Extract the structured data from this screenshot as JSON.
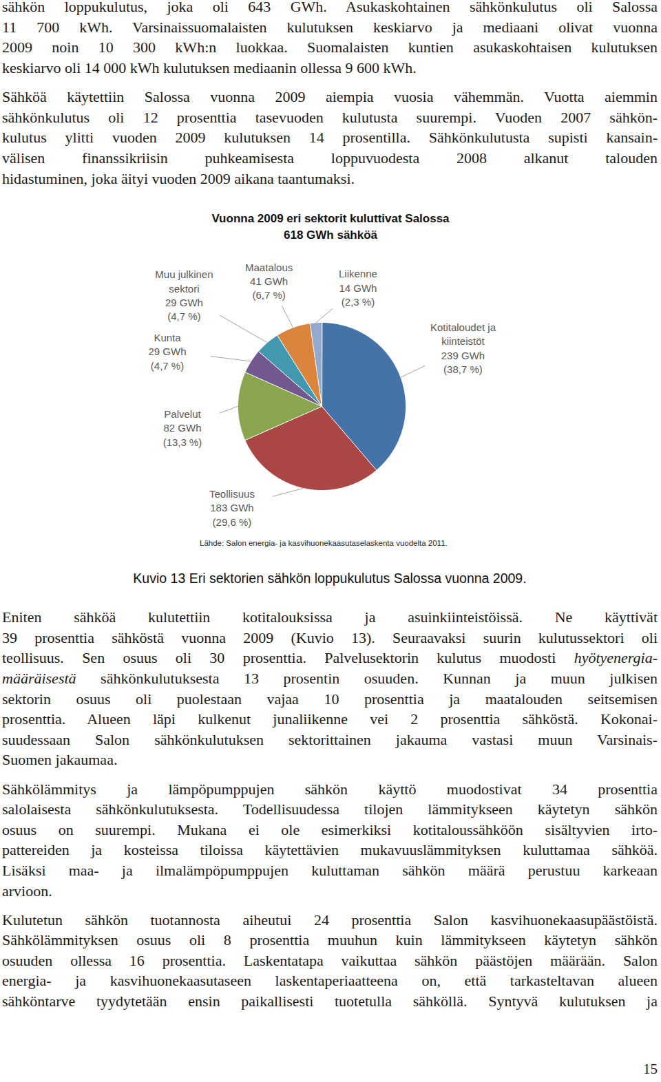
{
  "paragraphs_before": [
    {
      "lines": [
        "sähkön loppukulutus, joka oli 643 GWh. Asukaskohtainen sähkönkulutus oli Salossa",
        "11 700 kWh. Varsinaissuomalaisten kulutuksen keskiarvo ja mediaani olivat vuonna",
        "2009 noin 10 300 kWh:n luokkaa. Suomalaisten kuntien asukaskohtaisen kulutuksen",
        "keskiarvo oli 14 000 kWh kulutuksen mediaanin ollessa 9 600 kWh."
      ]
    },
    {
      "lines": [
        "Sähköä käytettiin Salossa vuonna 2009 aiempia vuosia vähemmän. Vuotta aiemmin",
        "sähkönkulutus oli 12 prosenttia tasevuoden kulutusta suurempi. Vuoden 2007 sähkön-",
        "kulutus ylitti vuoden 2009 kulutuksen 14 prosentilla. Sähkönkulutusta supisti kansain-",
        "välisen finanssikriisin puhkeamisesta loppuvuodesta 2008 alkanut talouden",
        "hidastuminen, joka äityi vuoden 2009 aikana taantumaksi."
      ]
    }
  ],
  "chart_data": {
    "type": "pie",
    "title": "Vuonna 2009 eri sektorit kuluttivat Salossa\n618 GWh sähköä",
    "annotations": [
      "Lähde: Salon energia- ja kasvihuonekaasutaselaskenta vuodelta 2011."
    ],
    "categories": [
      "Kotitaloudet ja\nkiinteistöt",
      "Teollisuus",
      "Palvelut",
      "Kunta",
      "Muu julkinen\nsektori",
      "Maatalous",
      "Liikenne"
    ],
    "values": [
      239,
      183,
      82,
      29,
      29,
      41,
      14
    ],
    "value_labels": [
      "239 GWh",
      "183 GWh",
      "82 GWh",
      "29 GWh",
      "29 GWh",
      "41 GWh",
      "14 GWh"
    ],
    "percentage_labels": [
      "(38,7 %)",
      "(29,6 %)",
      "(13,3 %)",
      "(4,7 %)",
      "(4,7 %)",
      "(6,7 %)",
      "(2,3 %)"
    ],
    "colors": [
      "#4572A7",
      "#AA4643",
      "#89A54E",
      "#71588F",
      "#4198AF",
      "#DB843D",
      "#93A9CF"
    ],
    "data_labels": true
  },
  "caption": "Kuvio 13 Eri sektorien sähkön loppukulutus Salossa vuonna 2009.",
  "paragraphs_after": [
    {
      "lines": [
        "Eniten sähköä kulutettiin kotitalouksissa ja asuinkiinteistöissä. Ne käyttivät",
        "39 prosenttia sähköstä vuonna 2009 (Kuvio 13). Seuraavaksi suurin kulutussektori oli",
        "teollisuus. Sen osuus oli 30 prosenttia. Palvelusektorin kulutus muodosti hyötyenergia-",
        "määräisestä sähkönkulutuksesta 13 prosentin osuuden. Kunnan ja muun julkisen",
        "sektorin osuus oli puolestaan vajaa 10 prosenttia ja maatalouden seitsemisen",
        "prosenttia. Alueen läpi kulkenut junaliikenne vei 2 prosenttia sähköstä. Kokonai-",
        "suudessaan Salon sähkönkulutuksen sektorittainen jakauma vastasi muun Varsinais-",
        "Suomen jakaumaa."
      ],
      "italic": [
        "hyötyenergia-",
        "määräisestä"
      ]
    },
    {
      "lines": [
        "Sähkölämmitys ja lämpöpumppujen sähkön käyttö muodostivat 34 prosenttia",
        "salolaisesta sähkönkulutuksesta. Todellisuudessa tilojen lämmitykseen käytetyn sähkön",
        "osuus on suurempi. Mukana ei ole esimerkiksi kotitaloussähköön sisältyvien irto-",
        "pattereiden ja kosteissa tiloissa käytettävien mukavuuslämmityksen kuluttamaa sähköä.",
        "Lisäksi maa- ja ilmalämpöpumppujen kuluttaman sähkön määrä perustuu karkeaan",
        "arvioon."
      ]
    },
    {
      "lines": [
        "Kulutetun sähkön tuotannosta aiheutui 24 prosenttia Salon kasvihuonekaasupäästöistä.",
        "Sähkölämmityksen osuus oli 8 prosenttia muuhun kuin lämmitykseen käytetyn sähkön",
        "osuuden ollessa 16 prosenttia. Laskentatapa vaikuttaa sähkön päästöjen määrään. Salon",
        "energia- ja kasvihuonekaasutaseen laskentaperiaatteena on, että tarkasteltavan alueen",
        "sähköntarve tyydytetään ensin paikallisesti tuotetulla sähköllä. Syntyvä kulutuksen ja"
      ]
    }
  ],
  "page_number": 15
}
